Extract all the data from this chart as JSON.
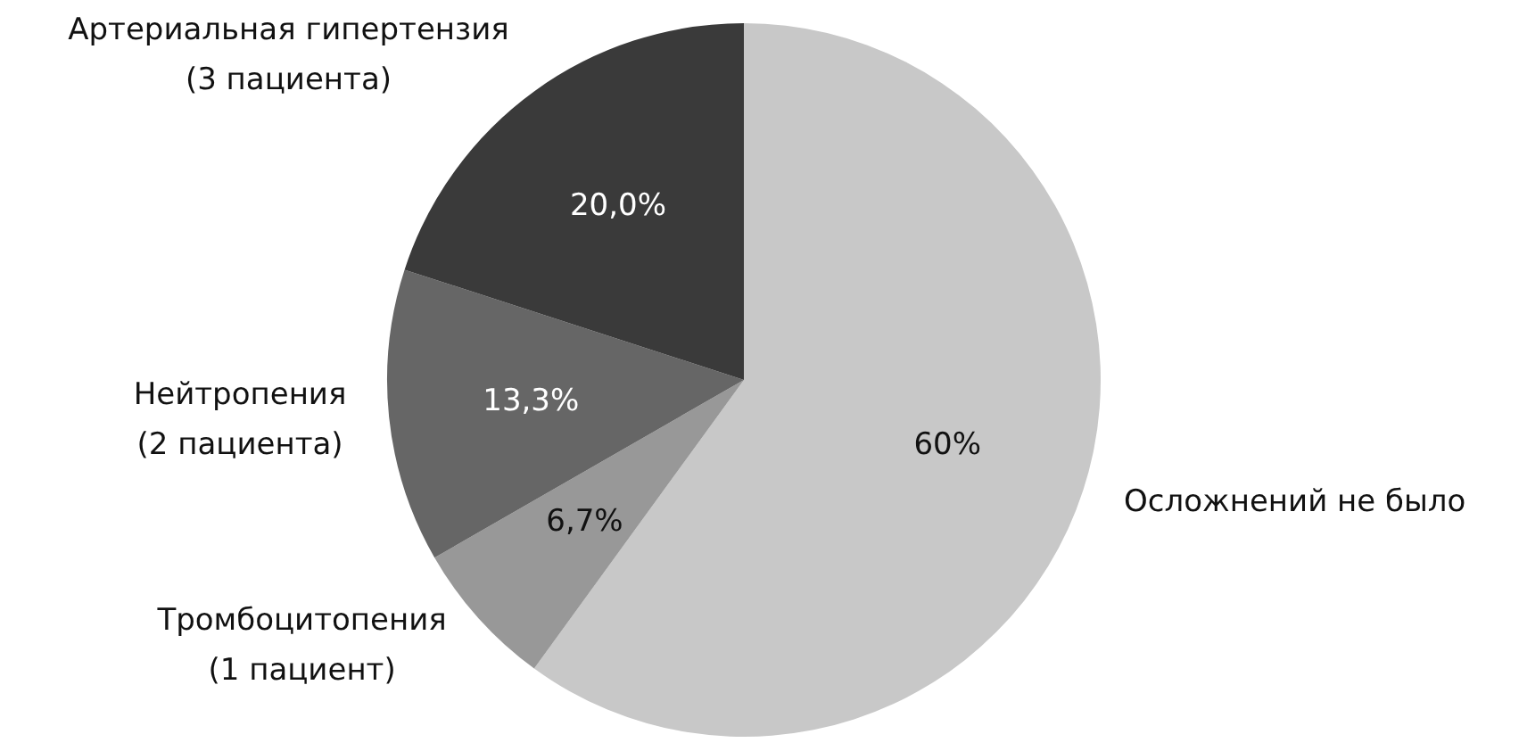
{
  "chart_data": {
    "type": "pie",
    "categories": [
      "Осложнений не было",
      "Тромбоцитопения\n(1 пациент)",
      "Нейтропения\n(2 пациента)",
      "Артериальная гипертензия\n(3 пациента)"
    ],
    "values": [
      60,
      6.7,
      13.3,
      20
    ],
    "value_labels": [
      "60%",
      "6,7%",
      "13,3%",
      "20,0%"
    ],
    "colors": [
      "#c8c8c8",
      "#989898",
      "#666666",
      "#3a3a3a"
    ],
    "legend": false
  }
}
